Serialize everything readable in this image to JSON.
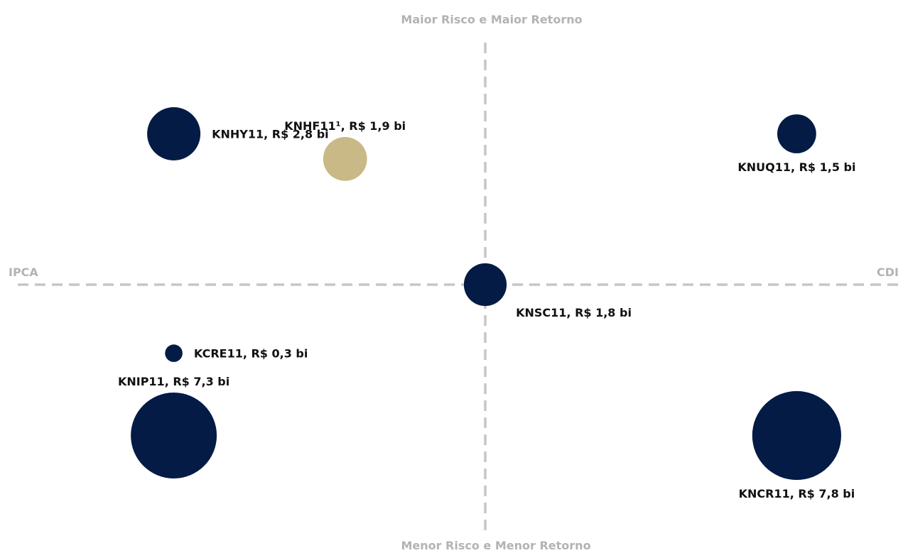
{
  "chart_data": {
    "type": "scatter",
    "title": "",
    "quadrant_labels": {
      "top": "Maior Risco e Maior Retorno",
      "bottom": "Menor Risco e Menor Retorno",
      "left": "IPCA",
      "right": "CDI"
    },
    "grid": false,
    "size_unit": "R$ bi",
    "colors": {
      "primary": "#031b45",
      "highlight": "#c9b987",
      "axis": "#c6c6c6",
      "quadrant_text": "#b3b3b3"
    },
    "points": [
      {
        "id": "knhy11",
        "label": "KNHY11, R$ 2,8 bi",
        "x": -0.8,
        "y": 0.66,
        "size": 2.8,
        "color": "#031b45",
        "label_position": "right"
      },
      {
        "id": "knhf11",
        "label": "KNHF11¹, R$ 1,9 bi",
        "x": -0.36,
        "y": 0.55,
        "size": 1.9,
        "color": "#c9b987",
        "label_position": "above"
      },
      {
        "id": "knuq11",
        "label": "KNUQ11, R$ 1,5 bi",
        "x": 0.8,
        "y": 0.66,
        "size": 1.5,
        "color": "#031b45",
        "label_position": "below"
      },
      {
        "id": "knsc11",
        "label": "KNSC11, R$ 1,8 bi",
        "x": 0.0,
        "y": 0.0,
        "size": 1.8,
        "color": "#031b45",
        "label_position": "below-right"
      },
      {
        "id": "kcre11",
        "label": "KCRE11, R$ 0,3 bi",
        "x": -0.8,
        "y": -0.3,
        "size": 0.3,
        "color": "#031b45",
        "label_position": "right"
      },
      {
        "id": "knip11",
        "label": "KNIP11, R$ 7,3 bi",
        "x": -0.8,
        "y": -0.66,
        "size": 7.3,
        "color": "#031b45",
        "label_position": "above"
      },
      {
        "id": "kncr11",
        "label": "KNCR11, R$ 7,8 bi",
        "x": 0.8,
        "y": -0.66,
        "size": 7.8,
        "color": "#031b45",
        "label_position": "below"
      }
    ]
  }
}
